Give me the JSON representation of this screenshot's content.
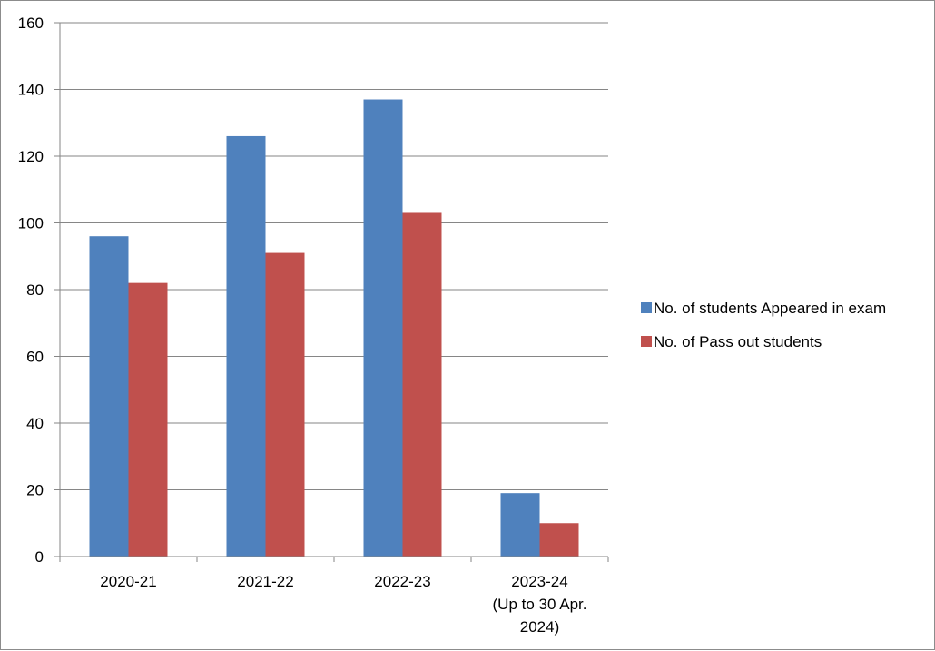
{
  "chart_data": {
    "type": "bar",
    "categories": [
      [
        "2020-21"
      ],
      [
        "2021-22"
      ],
      [
        "2022-23"
      ],
      [
        "2023-24",
        "(Up to 30 Apr.",
        "2024)"
      ]
    ],
    "series": [
      {
        "name": "No. of students Appeared in exam",
        "color": "#4f81bd",
        "values": [
          96,
          126,
          137,
          19
        ]
      },
      {
        "name": "No. of Pass out students",
        "color": "#c0504d",
        "values": [
          82,
          91,
          103,
          10
        ]
      }
    ],
    "yticks": [
      "0",
      "20",
      "40",
      "60",
      "80",
      "100",
      "120",
      "140",
      "160"
    ],
    "ylim": [
      0,
      160
    ],
    "grid": true,
    "legend_position": "right"
  }
}
